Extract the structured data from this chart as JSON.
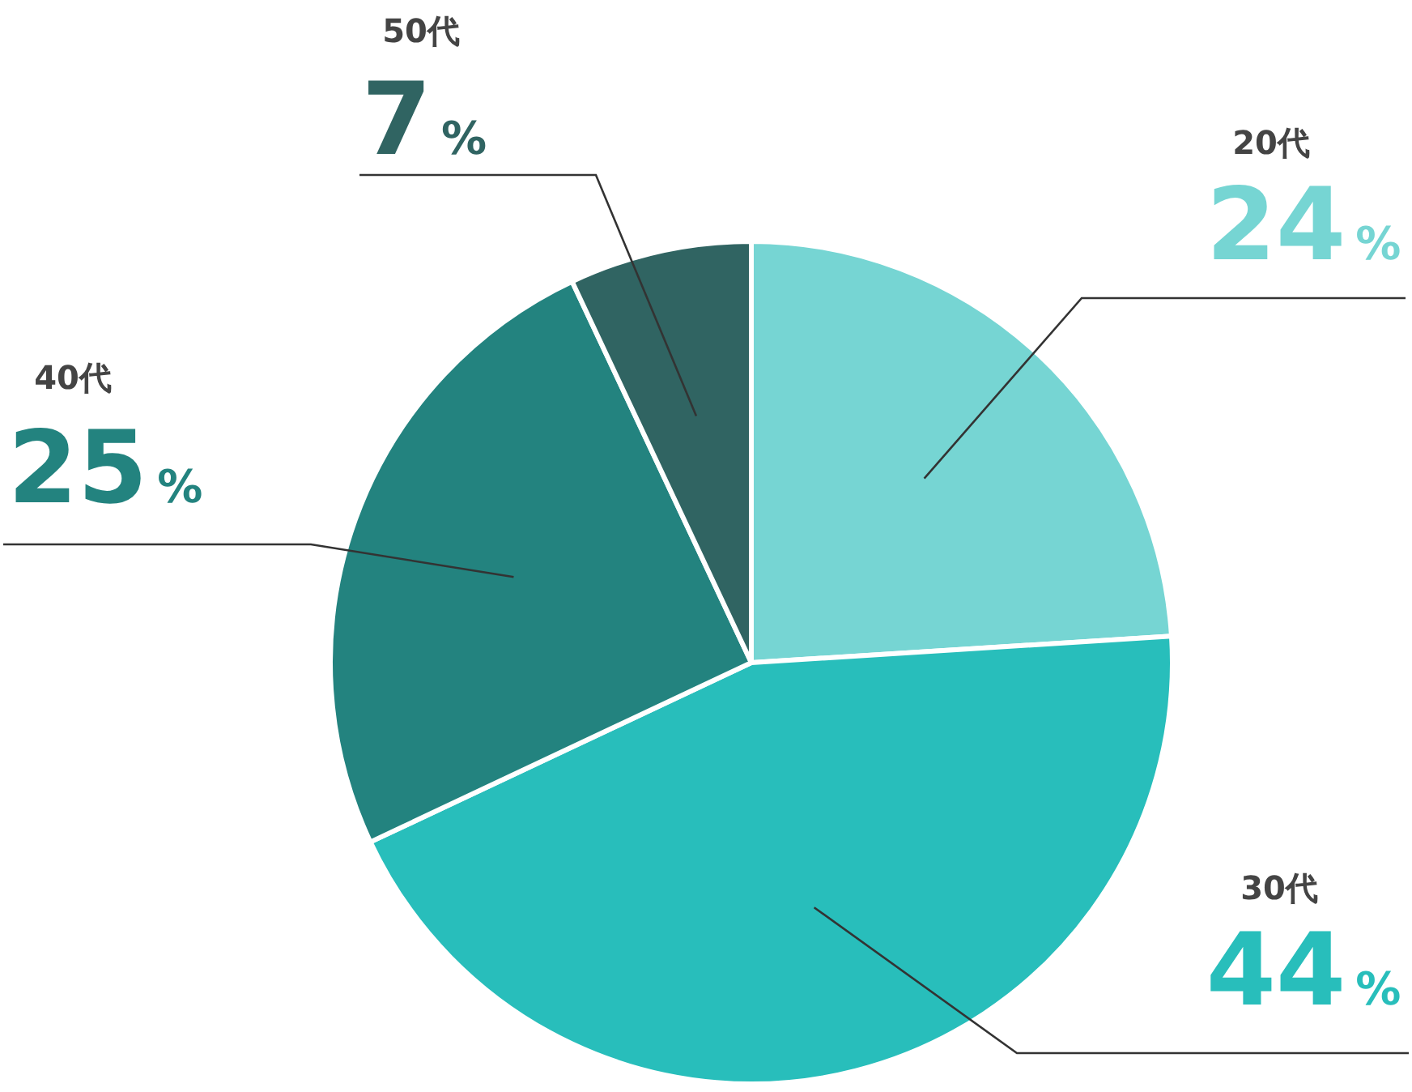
{
  "chart_data": {
    "type": "pie",
    "categories": [
      "20代",
      "30代",
      "40代",
      "50代"
    ],
    "values": [
      24,
      44,
      25,
      7
    ],
    "colors": [
      "#76d5d3",
      "#28bebb",
      "#23837f",
      "#306462"
    ],
    "value_labels": [
      "24%",
      "44%",
      "25%",
      "7%"
    ]
  }
}
